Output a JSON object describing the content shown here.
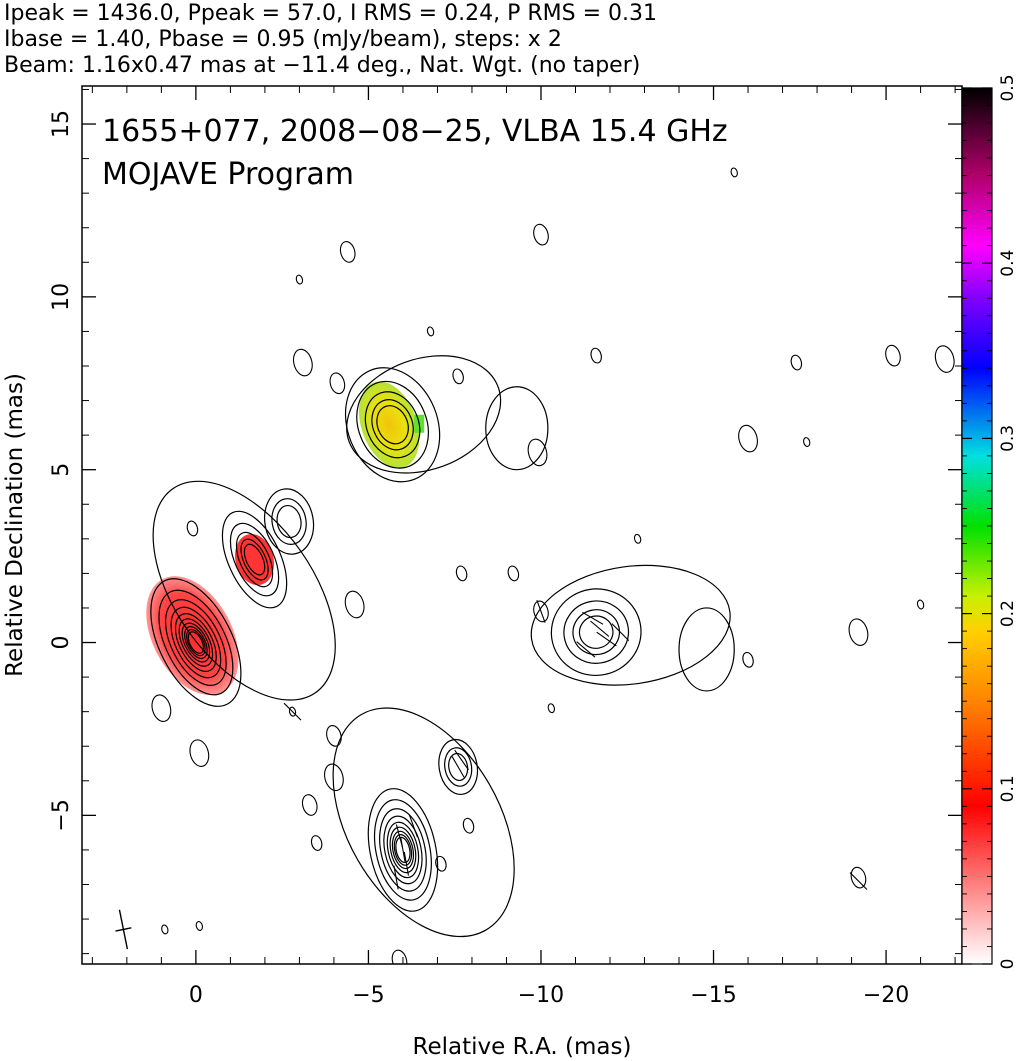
{
  "header_lines": [
    "Ipeak = 1436.0, Ppeak = 57.0, I RMS = 0.24, P RMS = 0.31",
    "Ibase = 1.40, Pbase = 0.95 (mJy/beam), steps: x 2",
    "Beam: 1.16x0.47 mas at −11.4 deg., Nat. Wgt. (no taper)"
  ],
  "chart_data": {
    "type": "heatmap",
    "title": "1655+077, 2008−08−25, VLBA 15.4 GHz",
    "subtitle": "MOJAVE Program",
    "xlabel": "Relative R.A. (mas)",
    "ylabel": "Relative Declination (mas)",
    "xlim": [
      3.3,
      -22.2
    ],
    "ylim": [
      -9.3,
      16.1
    ],
    "x_ticks": [
      0,
      -5,
      -10,
      -15,
      -20
    ],
    "x_tick_labels": [
      "0",
      "−5",
      "−10",
      "−15",
      "−20"
    ],
    "y_ticks": [
      -5,
      0,
      5,
      10,
      15
    ],
    "y_tick_labels": [
      "−5",
      "0",
      "5",
      "10",
      "15"
    ],
    "colorbar": {
      "range": [
        0,
        0.5
      ],
      "ticks": [
        0,
        0.1,
        0.2,
        0.3,
        0.4,
        0.5
      ],
      "tick_labels": [
        "0",
        "0.1",
        "0.2",
        "0.3",
        "0.4",
        "0.5"
      ]
    },
    "components": [
      {
        "x": 0.0,
        "y": 0.0,
        "peak_mJy": 1436.0,
        "levels": 10
      },
      {
        "x": -1.7,
        "y": 2.4,
        "levels": 5
      },
      {
        "x": -2.7,
        "y": 3.5,
        "levels": 3
      },
      {
        "x": -5.7,
        "y": 6.3,
        "levels": 5
      },
      {
        "x": -11.6,
        "y": 0.3,
        "levels": 4
      },
      {
        "x": -6.0,
        "y": -6.0,
        "levels": 9
      },
      {
        "x": -7.6,
        "y": -3.6,
        "levels": 3
      }
    ],
    "polarization_patches": [
      {
        "x": 0.1,
        "y": 0.2,
        "frac": 0.08
      },
      {
        "x": -1.7,
        "y": 2.4,
        "frac": 0.08
      },
      {
        "x": -5.6,
        "y": 6.3,
        "frac": 0.17
      }
    ],
    "beam": {
      "major_mas": 1.16,
      "minor_mas": 0.47,
      "pa_deg": -11.4
    }
  }
}
